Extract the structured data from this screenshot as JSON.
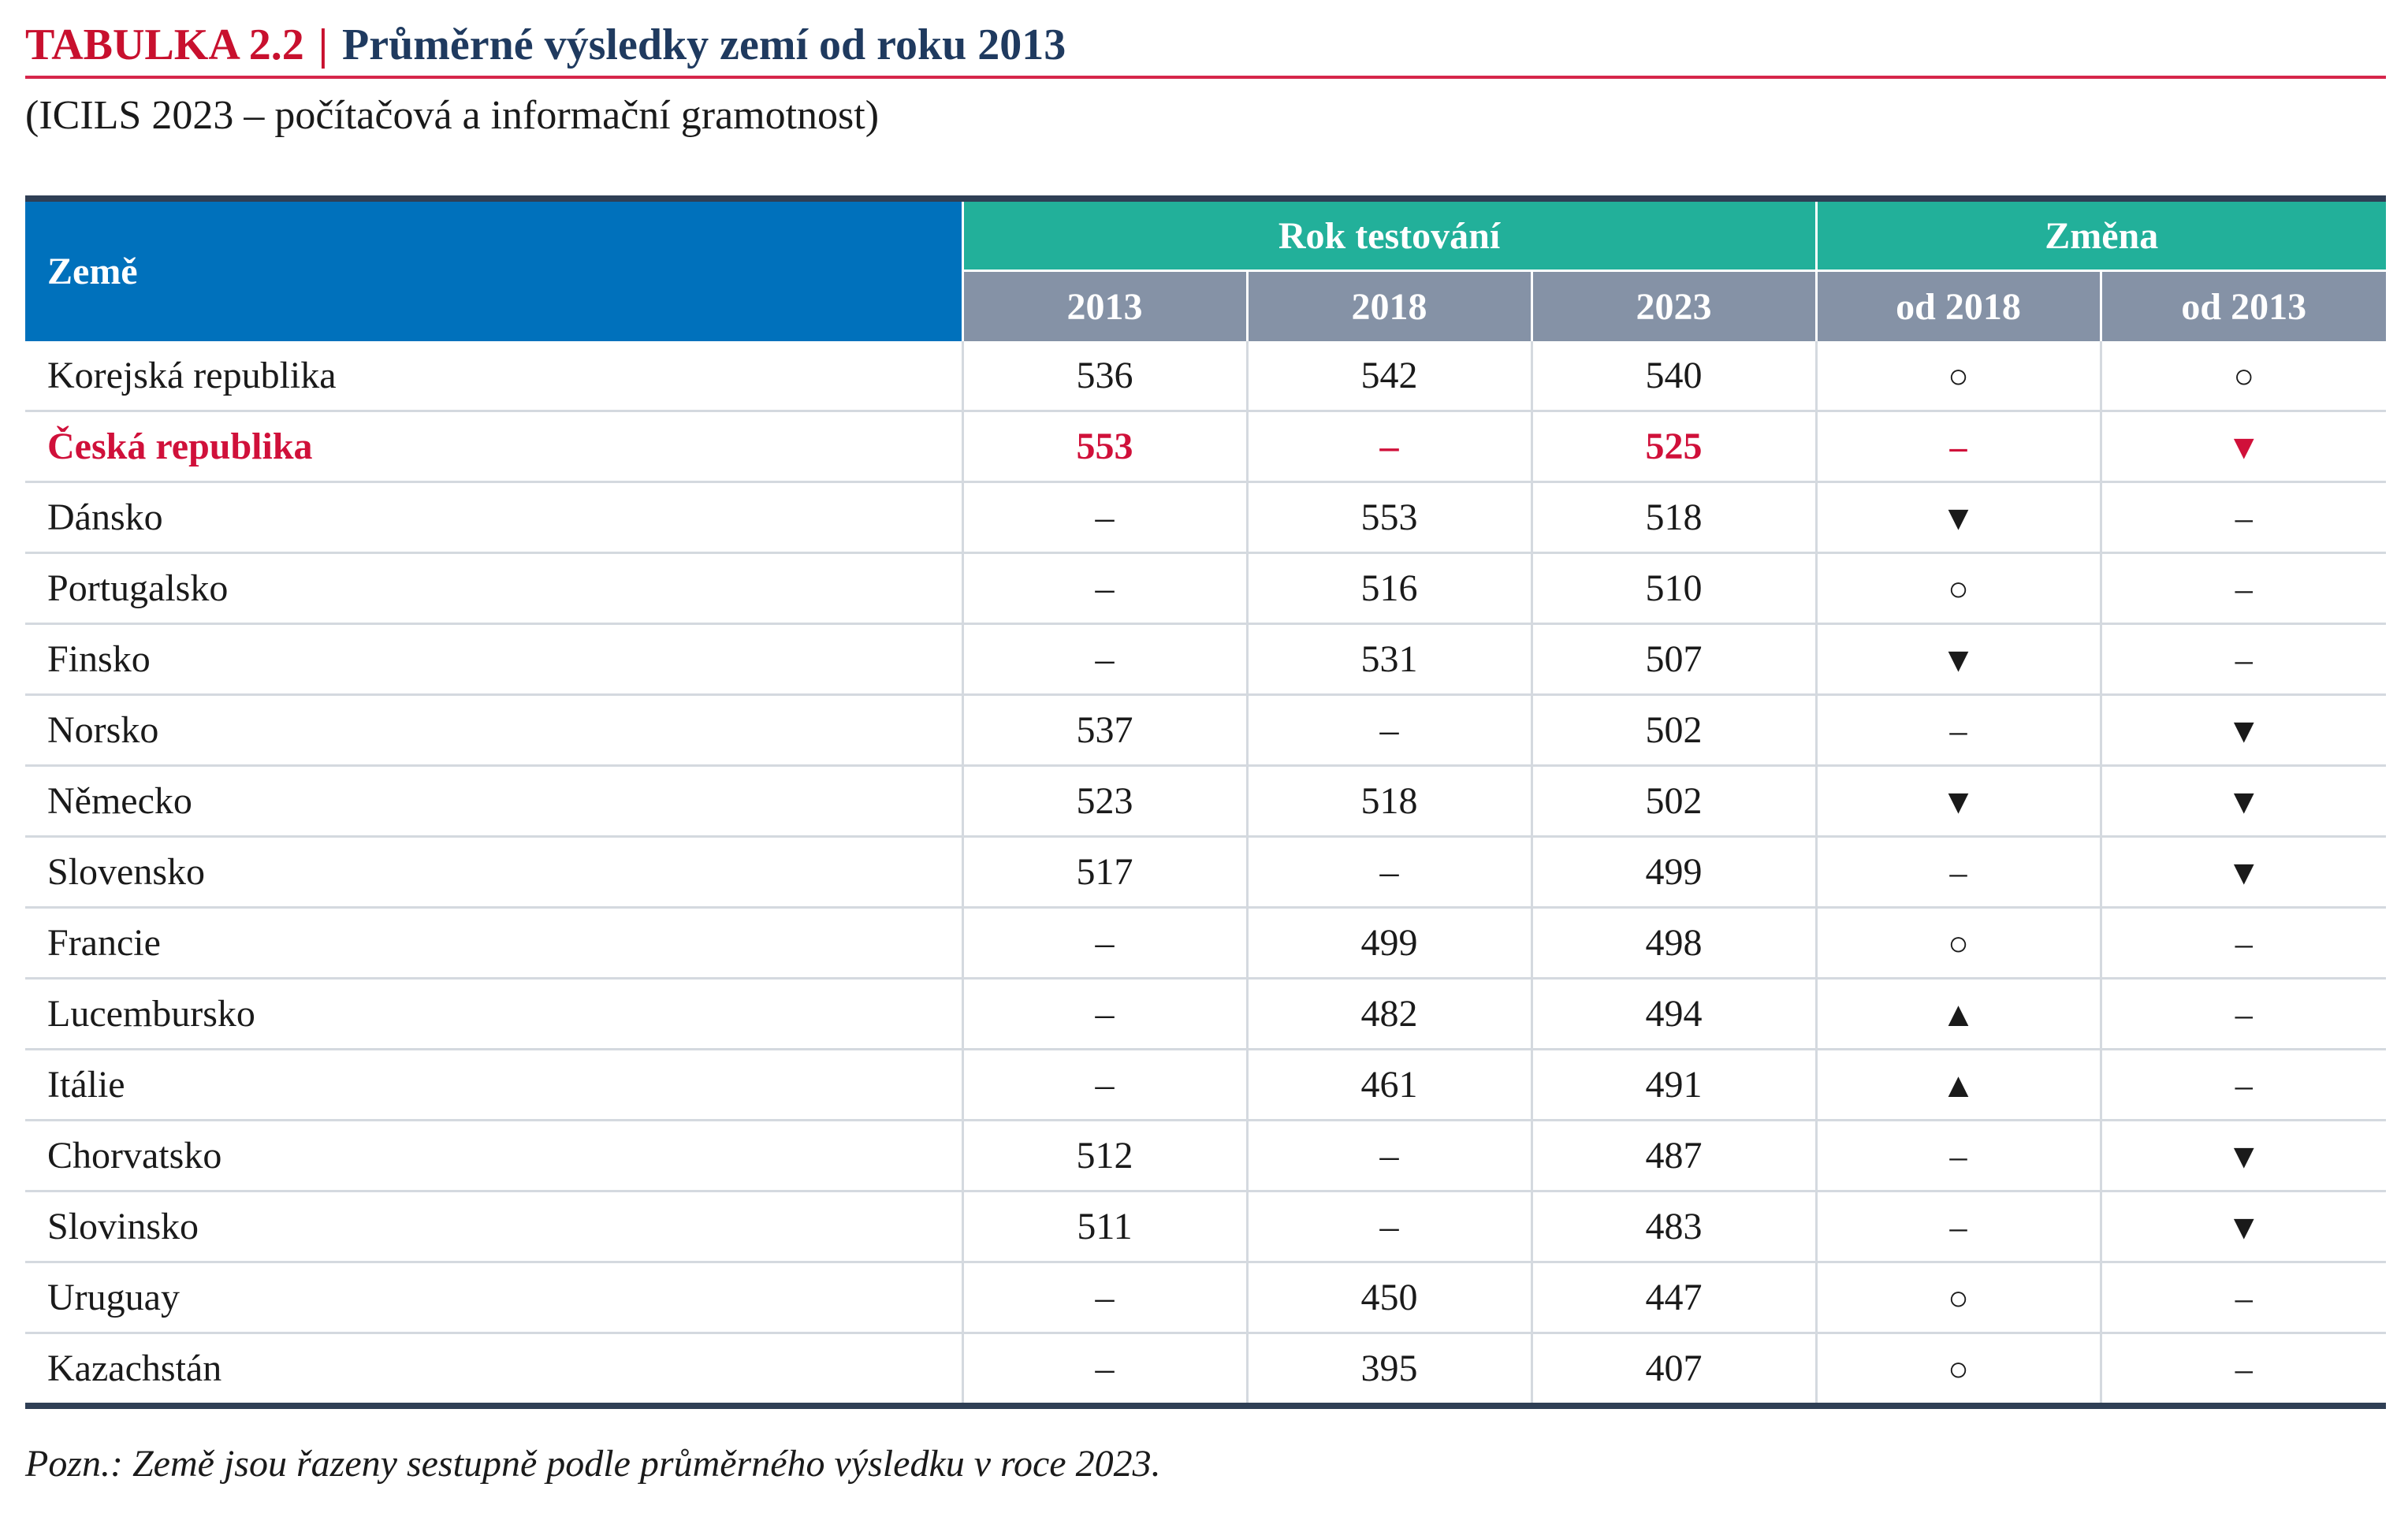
{
  "header": {
    "label": "TABULKA  2.2",
    "separator": "|",
    "title": "Průměrné výsledky zemí od roku 2013",
    "subtitle": "(ICILS 2023 – počítačová a informační gramotnost)"
  },
  "table": {
    "columns": {
      "country": "Země",
      "group_years": "Rok testování",
      "group_change": "Změna",
      "y2013": "2013",
      "y2018": "2018",
      "y2023": "2023",
      "since2018": "od 2018",
      "since2013": "od 2013"
    },
    "symbol_legend": {
      "circle": "○",
      "down": "▼",
      "up": "▲",
      "none": "–"
    },
    "rows": [
      {
        "country": "Korejská republika",
        "y2013": "536",
        "y2018": "542",
        "y2023": "540",
        "since2018": "○",
        "since2013": "○"
      },
      {
        "country": "Česká republika",
        "y2013": "553",
        "y2018": "–",
        "y2023": "525",
        "since2018": "–",
        "since2013": "▼",
        "highlight": true
      },
      {
        "country": "Dánsko",
        "y2013": "–",
        "y2018": "553",
        "y2023": "518",
        "since2018": "▼",
        "since2013": "–"
      },
      {
        "country": "Portugalsko",
        "y2013": "–",
        "y2018": "516",
        "y2023": "510",
        "since2018": "○",
        "since2013": "–"
      },
      {
        "country": "Finsko",
        "y2013": "–",
        "y2018": "531",
        "y2023": "507",
        "since2018": "▼",
        "since2013": "–"
      },
      {
        "country": "Norsko",
        "y2013": "537",
        "y2018": "–",
        "y2023": "502",
        "since2018": "–",
        "since2013": "▼"
      },
      {
        "country": "Německo",
        "y2013": "523",
        "y2018": "518",
        "y2023": "502",
        "since2018": "▼",
        "since2013": "▼"
      },
      {
        "country": "Slovensko",
        "y2013": "517",
        "y2018": "–",
        "y2023": "499",
        "since2018": "–",
        "since2013": "▼"
      },
      {
        "country": "Francie",
        "y2013": "–",
        "y2018": "499",
        "y2023": "498",
        "since2018": "○",
        "since2013": "–"
      },
      {
        "country": "Lucembursko",
        "y2013": "–",
        "y2018": "482",
        "y2023": "494",
        "since2018": "▲",
        "since2013": "–"
      },
      {
        "country": "Itálie",
        "y2013": "–",
        "y2018": "461",
        "y2023": "491",
        "since2018": "▲",
        "since2013": "–"
      },
      {
        "country": "Chorvatsko",
        "y2013": "512",
        "y2018": "–",
        "y2023": "487",
        "since2018": "–",
        "since2013": "▼"
      },
      {
        "country": "Slovinsko",
        "y2013": "511",
        "y2018": "–",
        "y2023": "483",
        "since2018": "–",
        "since2013": "▼"
      },
      {
        "country": "Uruguay",
        "y2013": "–",
        "y2018": "450",
        "y2023": "447",
        "since2018": "○",
        "since2013": "–"
      },
      {
        "country": "Kazachstán",
        "y2013": "–",
        "y2018": "395",
        "y2023": "407",
        "since2018": "○",
        "since2013": "–"
      }
    ]
  },
  "note": "Pozn.: Země jsou řazeny sestupně podle průměrného výsledku v roce 2023.",
  "colors": {
    "title_red": "#c8102e",
    "title_navy": "#1f3a5f",
    "header_blue": "#0071bc",
    "header_teal": "#22b09a",
    "header_gray": "#8592a6",
    "highlight_red": "#d0103a",
    "rule_dark": "#2f3f55"
  }
}
